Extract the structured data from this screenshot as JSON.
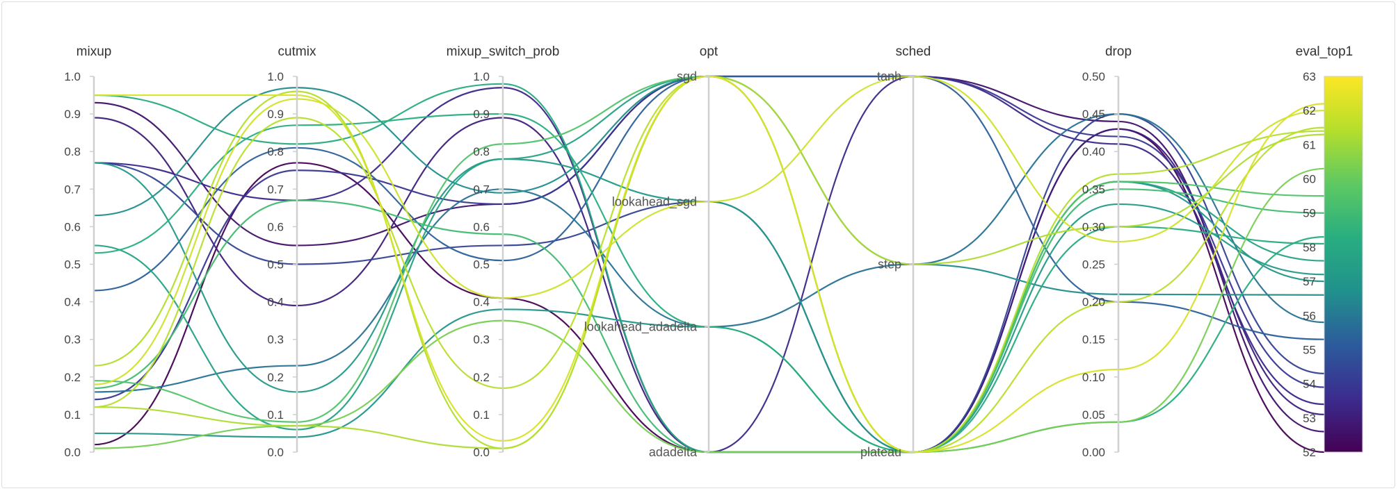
{
  "chart_data": {
    "type": "parallel_coordinates",
    "title": "",
    "axes": [
      {
        "key": "mixup",
        "label": "mixup",
        "kind": "numeric",
        "range": [
          0,
          1
        ],
        "ticks": [
          "0.0",
          "0.1",
          "0.2",
          "0.3",
          "0.4",
          "0.5",
          "0.6",
          "0.7",
          "0.8",
          "0.9",
          "1.0"
        ]
      },
      {
        "key": "cutmix",
        "label": "cutmix",
        "kind": "numeric",
        "range": [
          0,
          1
        ],
        "ticks": [
          "0.0",
          "0.1",
          "0.2",
          "0.3",
          "0.4",
          "0.5",
          "0.6",
          "0.7",
          "0.8",
          "0.9",
          "1.0"
        ]
      },
      {
        "key": "mixup_switch_prob",
        "label": "mixup_switch_prob",
        "kind": "numeric",
        "range": [
          0,
          1
        ],
        "ticks": [
          "0.0",
          "0.1",
          "0.2",
          "0.3",
          "0.4",
          "0.5",
          "0.6",
          "0.7",
          "0.8",
          "0.9",
          "1.0"
        ]
      },
      {
        "key": "opt",
        "label": "opt",
        "kind": "categorical",
        "categories": [
          "adadelta",
          "lookahead_adadelta",
          "lookahead_sgd",
          "sgd"
        ]
      },
      {
        "key": "sched",
        "label": "sched",
        "kind": "categorical",
        "categories": [
          "plateau",
          "step",
          "tanh"
        ]
      },
      {
        "key": "drop",
        "label": "drop",
        "kind": "numeric",
        "range": [
          0,
          0.5
        ],
        "ticks": [
          "0.00",
          "0.05",
          "0.10",
          "0.15",
          "0.20",
          "0.25",
          "0.30",
          "0.35",
          "0.40",
          "0.45",
          "0.50"
        ]
      },
      {
        "key": "eval_top1",
        "label": "eval_top1",
        "kind": "numeric",
        "range": [
          52,
          63
        ],
        "ticks": [
          "52",
          "53",
          "54",
          "55",
          "56",
          "57",
          "58",
          "59",
          "60",
          "61",
          "62",
          "63"
        ]
      }
    ],
    "colorscale": {
      "name": "Viridis",
      "key": "eval_top1",
      "range": [
        52,
        63
      ],
      "stops": [
        "#440154",
        "#3b2c8e",
        "#2c5b9c",
        "#21918c",
        "#28ae80",
        "#5ec962",
        "#b5de2b",
        "#fde725"
      ]
    },
    "series": [
      {
        "mixup": 0.02,
        "cutmix": 0.77,
        "mixup_switch_prob": 0.41,
        "opt": "adadelta",
        "sched": "plateau",
        "drop": 0.43,
        "eval_top1": 52.0
      },
      {
        "mixup": 0.93,
        "cutmix": 0.55,
        "mixup_switch_prob": 0.66,
        "opt": "sgd",
        "sched": "tanh",
        "drop": 0.44,
        "eval_top1": 52.6
      },
      {
        "mixup": 0.89,
        "cutmix": 0.39,
        "mixup_switch_prob": 0.89,
        "opt": "adadelta",
        "sched": "plateau",
        "drop": 0.43,
        "eval_top1": 53.1
      },
      {
        "mixup": 0.77,
        "cutmix": 0.67,
        "mixup_switch_prob": 0.97,
        "opt": "adadelta",
        "sched": "tanh",
        "drop": 0.41,
        "eval_top1": 53.4
      },
      {
        "mixup": 0.14,
        "cutmix": 0.75,
        "mixup_switch_prob": 0.66,
        "opt": "sgd",
        "sched": "tanh",
        "drop": 0.42,
        "eval_top1": 53.9
      },
      {
        "mixup": 0.77,
        "cutmix": 0.5,
        "mixup_switch_prob": 0.55,
        "opt": "lookahead_sgd",
        "sched": "plateau",
        "drop": 0.45,
        "eval_top1": 54.3
      },
      {
        "mixup": 0.43,
        "cutmix": 0.81,
        "mixup_switch_prob": 0.51,
        "opt": "sgd",
        "sched": "tanh",
        "drop": 0.2,
        "eval_top1": 55.3
      },
      {
        "mixup": 0.16,
        "cutmix": 0.23,
        "mixup_switch_prob": 0.7,
        "opt": "lookahead_adadelta",
        "sched": "step",
        "drop": 0.45,
        "eval_top1": 55.8
      },
      {
        "mixup": 0.63,
        "cutmix": 0.97,
        "mixup_switch_prob": 0.69,
        "opt": "sgd",
        "sched": "step",
        "drop": 0.21,
        "eval_top1": 56.6
      },
      {
        "mixup": 0.77,
        "cutmix": 0.16,
        "mixup_switch_prob": 0.78,
        "opt": "lookahead_sgd",
        "sched": "plateau",
        "drop": 0.33,
        "eval_top1": 57.2
      },
      {
        "mixup": 0.55,
        "cutmix": 0.06,
        "mixup_switch_prob": 0.78,
        "opt": "sgd",
        "sched": "plateau",
        "drop": 0.36,
        "eval_top1": 57.6
      },
      {
        "mixup": 0.95,
        "cutmix": 0.82,
        "mixup_switch_prob": 0.98,
        "opt": "adadelta",
        "sched": "plateau",
        "drop": 0.3,
        "eval_top1": 58.1
      },
      {
        "mixup": 0.05,
        "cutmix": 0.04,
        "mixup_switch_prob": 0.38,
        "opt": "lookahead_adadelta",
        "sched": "plateau",
        "drop": 0.36,
        "eval_top1": 57.0
      },
      {
        "mixup": 0.53,
        "cutmix": 0.87,
        "mixup_switch_prob": 0.9,
        "opt": "lookahead_adadelta",
        "sched": "plateau",
        "drop": 0.04,
        "eval_top1": 58.3
      },
      {
        "mixup": 0.19,
        "cutmix": 0.08,
        "mixup_switch_prob": 0.82,
        "opt": "sgd",
        "sched": "plateau",
        "drop": 0.36,
        "eval_top1": 59.5
      },
      {
        "mixup": 0.01,
        "cutmix": 0.07,
        "mixup_switch_prob": 0.35,
        "opt": "adadelta",
        "sched": "plateau",
        "drop": 0.04,
        "eval_top1": 60.3
      },
      {
        "mixup": 0.17,
        "cutmix": 0.67,
        "mixup_switch_prob": 0.58,
        "opt": "adadelta",
        "sched": "plateau",
        "drop": 0.35,
        "eval_top1": 59.0
      },
      {
        "mixup": 0.12,
        "cutmix": 0.89,
        "mixup_switch_prob": 0.17,
        "opt": "sgd",
        "sched": "plateau",
        "drop": 0.2,
        "eval_top1": 61.5
      },
      {
        "mixup": 0.95,
        "cutmix": 0.95,
        "mixup_switch_prob": 0.03,
        "opt": "sgd",
        "sched": "plateau",
        "drop": 0.11,
        "eval_top1": 62.2
      },
      {
        "mixup": 0.23,
        "cutmix": 0.96,
        "mixup_switch_prob": 0.01,
        "opt": "sgd",
        "sched": "plateau",
        "drop": 0.37,
        "eval_top1": 61.4
      },
      {
        "mixup": 0.12,
        "cutmix": 0.07,
        "mixup_switch_prob": 0.01,
        "opt": "sgd",
        "sched": "step",
        "drop": 0.3,
        "eval_top1": 61.3
      },
      {
        "mixup": 0.18,
        "cutmix": 0.94,
        "mixup_switch_prob": 0.41,
        "opt": "lookahead_sgd",
        "sched": "tanh",
        "drop": 0.28,
        "eval_top1": 62.0
      }
    ]
  }
}
